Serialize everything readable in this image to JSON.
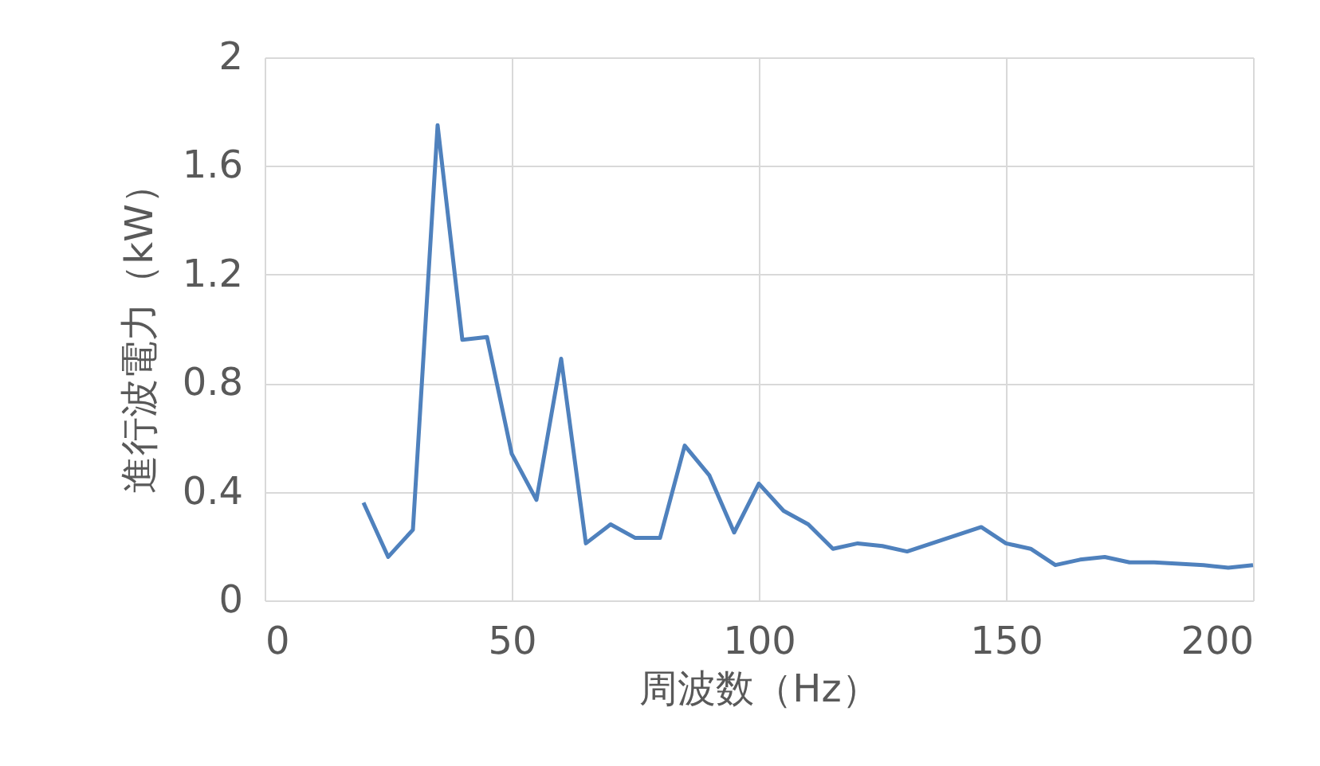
{
  "chart_data": {
    "type": "line",
    "xlabel": "周波数（Hz）",
    "ylabel": "進行波電力（kW）",
    "x": [
      20,
      25,
      30,
      35,
      40,
      45,
      50,
      55,
      60,
      65,
      70,
      75,
      80,
      85,
      90,
      95,
      100,
      105,
      110,
      115,
      120,
      125,
      130,
      135,
      140,
      145,
      150,
      155,
      160,
      165,
      170,
      175,
      180,
      185,
      190,
      195,
      200
    ],
    "series": [
      {
        "color": "#4f81bd",
        "values": [
          0.36,
          0.16,
          0.26,
          1.75,
          0.96,
          0.97,
          0.54,
          0.37,
          0.89,
          0.21,
          0.28,
          0.23,
          0.23,
          0.57,
          0.46,
          0.25,
          0.43,
          0.33,
          0.28,
          0.19,
          0.21,
          0.2,
          0.18,
          0.21,
          0.24,
          0.27,
          0.21,
          0.19,
          0.13,
          0.15,
          0.16,
          0.14,
          0.14,
          0.135,
          0.13,
          0.12,
          0.13
        ]
      }
    ],
    "xlim": [
      0,
      200
    ],
    "xticks": [
      0,
      50,
      100,
      150,
      200
    ],
    "ylim": [
      0,
      2
    ],
    "yticks": [
      0,
      0.4,
      0.8,
      1.2,
      1.6,
      2
    ],
    "grid": true,
    "marker": "none",
    "line_style": "solid"
  }
}
